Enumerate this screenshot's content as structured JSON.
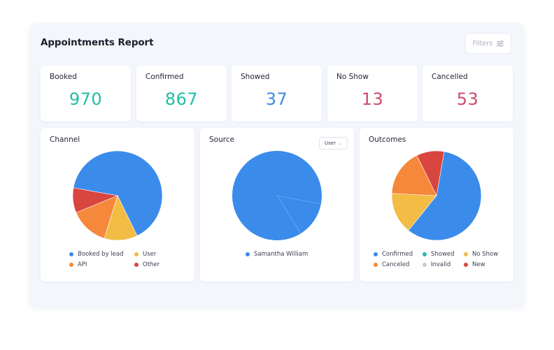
{
  "report": {
    "title": "Appointments Report",
    "filters_label": "Filters"
  },
  "stats": [
    {
      "label": "Booked",
      "value": "970",
      "color": "#1fbfa3"
    },
    {
      "label": "Confirmed",
      "value": "867",
      "color": "#1fbfa3"
    },
    {
      "label": "Showed",
      "value": "37",
      "color": "#3d8ae0"
    },
    {
      "label": "No Show",
      "value": "13",
      "color": "#d04a6c"
    },
    {
      "label": "Cancelled",
      "value": "53",
      "color": "#d04a6c"
    }
  ],
  "charts": {
    "channel": {
      "title": "Channel",
      "legend": [
        "Booked by lead",
        "User",
        "API",
        "Other"
      ]
    },
    "source": {
      "title": "Source",
      "dropdown_value": "User",
      "legend": [
        "Samantha William"
      ]
    },
    "outcomes": {
      "title": "Outcomes",
      "legend": [
        "Confirmed",
        "Showed",
        "No Show",
        "Canceled",
        "Invalid",
        "New"
      ]
    }
  },
  "chart_data": [
    {
      "type": "pie",
      "title": "Channel",
      "categories": [
        "Booked by lead",
        "User",
        "API",
        "Other"
      ],
      "values": [
        65,
        12,
        14,
        9
      ],
      "colors": [
        "#3b8beb",
        "#f2bc45",
        "#f5883a",
        "#d9453f"
      ]
    },
    {
      "type": "pie",
      "title": "Source",
      "categories": [
        "Samantha William"
      ],
      "values": [
        100
      ],
      "colors": [
        "#3b8beb"
      ]
    },
    {
      "type": "pie",
      "title": "Outcomes",
      "categories": [
        "Confirmed",
        "Showed",
        "No Show",
        "Canceled",
        "Invalid",
        "New"
      ],
      "values": [
        58,
        0,
        15,
        17,
        0,
        10
      ],
      "colors": [
        "#3b8beb",
        "#1fbfa3",
        "#f2bc45",
        "#f5883a",
        "#c9ccd3",
        "#d9453f"
      ]
    }
  ]
}
